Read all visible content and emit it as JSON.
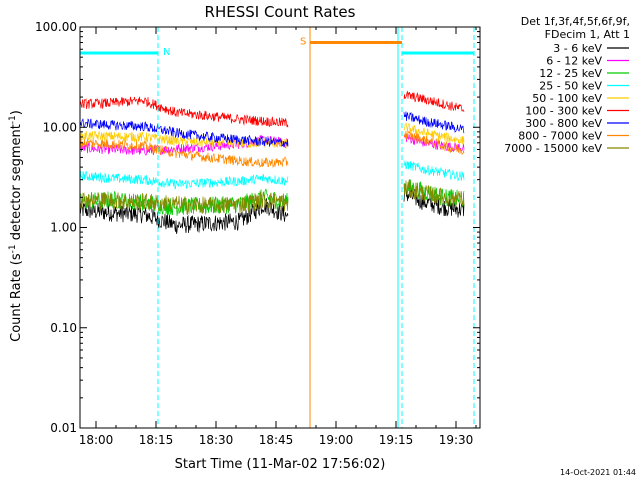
{
  "chart_data": {
    "type": "line",
    "title": "RHESSI Count Rates",
    "xlabel": "Start Time (11-Mar-02 17:56:02)",
    "ylabel_main": "Count Rate (s",
    "ylabel_sup": "-1",
    "ylabel_mid": " detector segment",
    "ylabel_sup2": "-1",
    "ylabel_end": ")",
    "yscale": "log",
    "ylim": [
      0.01,
      100
    ],
    "xlim_minutes": [
      0,
      100
    ],
    "x_ticks": [
      {
        "label": "18:00",
        "min": 4
      },
      {
        "label": "18:15",
        "min": 19
      },
      {
        "label": "18:30",
        "min": 34
      },
      {
        "label": "18:45",
        "min": 49
      },
      {
        "label": "19:00",
        "min": 64
      },
      {
        "label": "19:15",
        "min": 79
      },
      {
        "label": "19:30",
        "min": 94
      }
    ],
    "y_ticks": [
      {
        "label": "100.00",
        "value": 100
      },
      {
        "label": "10.00",
        "value": 10
      },
      {
        "label": "1.00",
        "value": 1
      },
      {
        "label": "0.10",
        "value": 0.1
      },
      {
        "label": "0.01",
        "value": 0.01
      }
    ],
    "legend_header": [
      "Det 1f,3f,4f,5f,6f,9f,",
      "FDecim 1, Att 1"
    ],
    "series": [
      {
        "name": "3 - 6 keV",
        "color": "#000000",
        "segments": [
          {
            "x": [
              0,
              8,
              16,
              24,
              32,
              40,
              46,
              52
            ],
            "y": [
              1.5,
              1.4,
              1.35,
              1.05,
              1.1,
              1.15,
              1.7,
              1.3
            ]
          },
          {
            "x": [
              81,
              86,
              91,
              96
            ],
            "y": [
              2.2,
              1.8,
              1.6,
              1.5
            ]
          }
        ]
      },
      {
        "name": "6 - 12 keV",
        "color": "#ff00ff",
        "segments": [
          {
            "x": [
              0,
              8,
              16,
              24,
              32,
              40,
              46,
              52
            ],
            "y": [
              6.2,
              6.0,
              5.8,
              6.1,
              6.4,
              6.8,
              7.5,
              6.9
            ]
          },
          {
            "x": [
              81,
              86,
              91,
              96
            ],
            "y": [
              8.0,
              7.0,
              6.5,
              6.2
            ]
          }
        ]
      },
      {
        "name": "12 - 25 keV",
        "color": "#00cc00",
        "segments": [
          {
            "x": [
              0,
              8,
              16,
              24,
              32,
              40,
              46,
              52
            ],
            "y": [
              1.8,
              1.9,
              1.75,
              1.6,
              1.65,
              1.7,
              2.0,
              1.8
            ]
          },
          {
            "x": [
              81,
              86,
              91,
              96
            ],
            "y": [
              2.6,
              2.3,
              2.0,
              1.9
            ]
          }
        ]
      },
      {
        "name": "25 - 50 keV",
        "color": "#00ffff",
        "segments": [
          {
            "x": [
              0,
              8,
              16,
              24,
              32,
              40,
              46,
              52
            ],
            "y": [
              3.3,
              3.1,
              3.0,
              2.7,
              2.8,
              2.9,
              3.1,
              2.9
            ]
          },
          {
            "x": [
              81,
              86,
              91,
              96
            ],
            "y": [
              4.3,
              3.8,
              3.5,
              3.2
            ]
          }
        ]
      },
      {
        "name": "50 - 100 keV",
        "color": "#ffcc00",
        "segments": [
          {
            "x": [
              0,
              8,
              16,
              24,
              32,
              40,
              46,
              52
            ],
            "y": [
              8.2,
              8.1,
              8.0,
              7.3,
              7.0,
              6.9,
              7.0,
              6.8
            ]
          },
          {
            "x": [
              81,
              86,
              91,
              96
            ],
            "y": [
              10.0,
              8.8,
              8.0,
              7.3
            ]
          }
        ]
      },
      {
        "name": "100 - 300 keV",
        "color": "#ff0000",
        "segments": [
          {
            "x": [
              0,
              8,
              16,
              24,
              32,
              40,
              46,
              52
            ],
            "y": [
              17,
              17.5,
              18.5,
              14,
              13,
              12,
              11.5,
              11
            ]
          },
          {
            "x": [
              81,
              86,
              91,
              96
            ],
            "y": [
              21,
              19,
              17,
              15
            ]
          }
        ]
      },
      {
        "name": "300 - 800 keV",
        "color": "#0000ff",
        "segments": [
          {
            "x": [
              0,
              8,
              16,
              24,
              32,
              40,
              46,
              52
            ],
            "y": [
              11,
              10.5,
              10.2,
              8.8,
              8.0,
              7.5,
              7.2,
              7.0
            ]
          },
          {
            "x": [
              81,
              86,
              91,
              96
            ],
            "y": [
              13,
              11.5,
              10.5,
              9.5
            ]
          }
        ]
      },
      {
        "name": "800 - 7000 keV",
        "color": "#ff8800",
        "segments": [
          {
            "x": [
              0,
              8,
              16,
              24,
              32,
              40,
              46,
              52
            ],
            "y": [
              7.0,
              6.8,
              6.5,
              5.5,
              5.0,
              4.6,
              4.4,
              4.5
            ]
          },
          {
            "x": [
              81,
              86,
              91,
              96
            ],
            "y": [
              8.5,
              7.5,
              6.5,
              5.8
            ]
          }
        ]
      },
      {
        "name": "7000 - 15000 keV",
        "color": "#888800",
        "segments": [
          {
            "x": [
              0,
              8,
              16,
              24,
              32,
              40,
              46,
              52
            ],
            "y": [
              1.9,
              1.85,
              1.8,
              1.7,
              1.65,
              1.7,
              1.9,
              1.75
            ]
          },
          {
            "x": [
              81,
              86,
              91,
              96
            ],
            "y": [
              2.5,
              2.2,
              2.0,
              1.9
            ]
          }
        ]
      }
    ],
    "annotations": [
      {
        "label": "N",
        "color": "#00ffff",
        "x_min": 0,
        "x_max": 19.5,
        "y": 55
      },
      {
        "label": "S",
        "color": "#ff8800",
        "x_min": 57.5,
        "x_max": 80.5,
        "y": 70
      },
      {
        "label": "",
        "color": "#00ffff",
        "x_min": 80.5,
        "x_max": 98.5,
        "y": 55
      }
    ],
    "vertical_lines": [
      {
        "x": 0,
        "color": "#00ffff",
        "style": "solid"
      },
      {
        "x": 19.5,
        "color": "#00ffff",
        "style": "dashed"
      },
      {
        "x": 57.5,
        "color": "#ff8800",
        "style": "solid"
      },
      {
        "x": 79.5,
        "color": "#00ffff",
        "style": "solid"
      },
      {
        "x": 80.5,
        "color": "#00ffff",
        "style": "dashed"
      },
      {
        "x": 98.5,
        "color": "#00ffff",
        "style": "dashed"
      }
    ],
    "footer_timestamp": "14-Oct-2021 01:44"
  }
}
